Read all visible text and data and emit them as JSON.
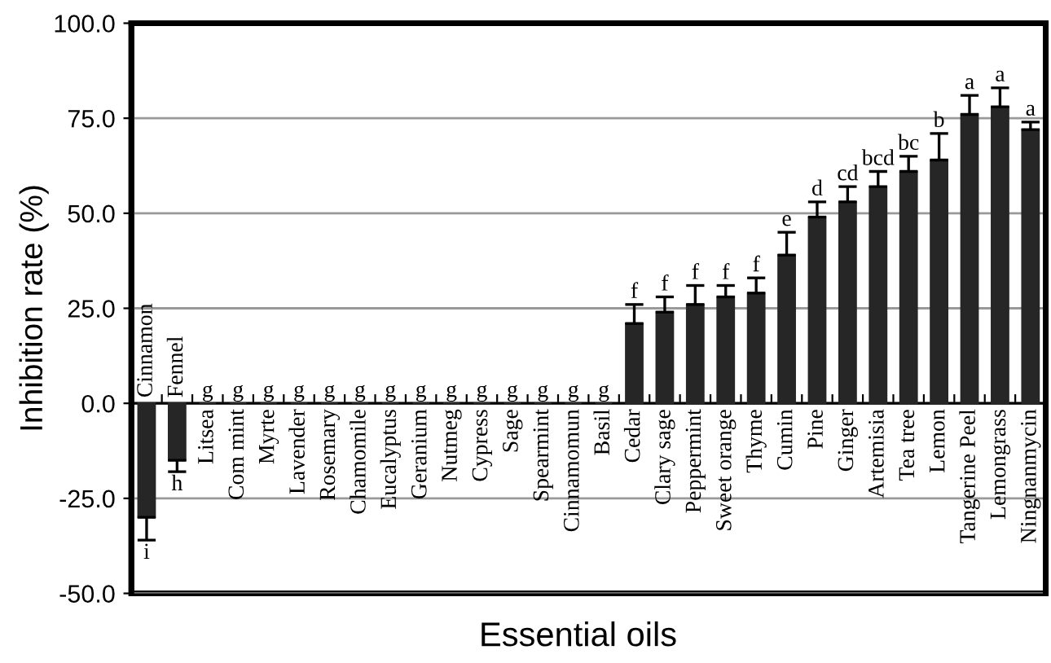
{
  "chart_data": {
    "type": "bar",
    "xlabel": "Essential oils",
    "ylabel": "Inhibition rate (%)",
    "categories": [
      "Cinnamon",
      "Fennel",
      "Litsea",
      "Com mint",
      "Myrte",
      "Lavender",
      "Rosemary",
      "Chamomile",
      "Eucalyptus",
      "Geranium",
      "Nutmeg",
      "Cypress",
      "Sage",
      "Spearmint",
      "Cinnamomun",
      "Basil",
      "Cedar",
      "Clary sage",
      "Peppermint",
      "Sweet orange",
      "Thyme",
      "Cumin",
      "Pine",
      "Ginger",
      "Artemisia",
      "Tea tree",
      "Lemon",
      "Tangerine Peel",
      "Lemongrass",
      "Ningnanmycin"
    ],
    "values": [
      -30,
      -15,
      0,
      0,
      0,
      0,
      0,
      0,
      0,
      0,
      0,
      0,
      0,
      0,
      0,
      0,
      21,
      24,
      26,
      28,
      29,
      39,
      49,
      53,
      57,
      61,
      64,
      76,
      78,
      72
    ],
    "errors": [
      6,
      3,
      null,
      null,
      null,
      null,
      null,
      null,
      null,
      null,
      null,
      null,
      null,
      null,
      null,
      null,
      5,
      4,
      5,
      3,
      4,
      6,
      4,
      4,
      4,
      4,
      7,
      5,
      5,
      2
    ],
    "value_labels": [
      "i",
      "h",
      "g",
      "g",
      "g",
      "g",
      "g",
      "g",
      "g",
      "g",
      "g",
      "g",
      "g",
      "g",
      "g",
      "g",
      "f",
      "f",
      "f",
      "f",
      "f",
      "e",
      "d",
      "cd",
      "bcd",
      "bc",
      "b",
      "a",
      "a",
      "a"
    ],
    "color": "#262626",
    "ylim": [
      -50,
      100
    ],
    "yticks": [
      {
        "value": -50,
        "label": "-50.0"
      },
      {
        "value": -25,
        "label": "-25.0"
      },
      {
        "value": 0,
        "label": "0.0"
      },
      {
        "value": 25,
        "label": "25.0"
      },
      {
        "value": 50,
        "label": "50.0"
      },
      {
        "value": 75,
        "label": "75.0"
      },
      {
        "value": 100,
        "label": "100.0"
      }
    ],
    "grid": "y"
  }
}
